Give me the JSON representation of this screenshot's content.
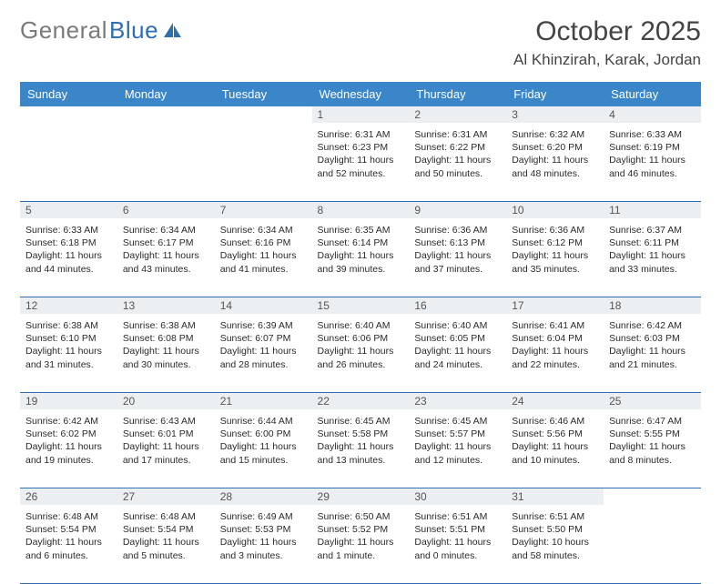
{
  "logo": {
    "text1": "General",
    "text2": "Blue"
  },
  "title": "October 2025",
  "location": "Al Khinzirah, Karak, Jordan",
  "header_bg": "#3a86c8",
  "rule_color": "#2f6fb0",
  "daynum_bg": "#eceff1",
  "text_color": "#2a2a2a",
  "days_of_week": [
    "Sunday",
    "Monday",
    "Tuesday",
    "Wednesday",
    "Thursday",
    "Friday",
    "Saturday"
  ],
  "weeks": [
    [
      {
        "day": "",
        "sunrise": "",
        "sunset": "",
        "daylight": ""
      },
      {
        "day": "",
        "sunrise": "",
        "sunset": "",
        "daylight": ""
      },
      {
        "day": "",
        "sunrise": "",
        "sunset": "",
        "daylight": ""
      },
      {
        "day": "1",
        "sunrise": "Sunrise: 6:31 AM",
        "sunset": "Sunset: 6:23 PM",
        "daylight": "Daylight: 11 hours and 52 minutes."
      },
      {
        "day": "2",
        "sunrise": "Sunrise: 6:31 AM",
        "sunset": "Sunset: 6:22 PM",
        "daylight": "Daylight: 11 hours and 50 minutes."
      },
      {
        "day": "3",
        "sunrise": "Sunrise: 6:32 AM",
        "sunset": "Sunset: 6:20 PM",
        "daylight": "Daylight: 11 hours and 48 minutes."
      },
      {
        "day": "4",
        "sunrise": "Sunrise: 6:33 AM",
        "sunset": "Sunset: 6:19 PM",
        "daylight": "Daylight: 11 hours and 46 minutes."
      }
    ],
    [
      {
        "day": "5",
        "sunrise": "Sunrise: 6:33 AM",
        "sunset": "Sunset: 6:18 PM",
        "daylight": "Daylight: 11 hours and 44 minutes."
      },
      {
        "day": "6",
        "sunrise": "Sunrise: 6:34 AM",
        "sunset": "Sunset: 6:17 PM",
        "daylight": "Daylight: 11 hours and 43 minutes."
      },
      {
        "day": "7",
        "sunrise": "Sunrise: 6:34 AM",
        "sunset": "Sunset: 6:16 PM",
        "daylight": "Daylight: 11 hours and 41 minutes."
      },
      {
        "day": "8",
        "sunrise": "Sunrise: 6:35 AM",
        "sunset": "Sunset: 6:14 PM",
        "daylight": "Daylight: 11 hours and 39 minutes."
      },
      {
        "day": "9",
        "sunrise": "Sunrise: 6:36 AM",
        "sunset": "Sunset: 6:13 PM",
        "daylight": "Daylight: 11 hours and 37 minutes."
      },
      {
        "day": "10",
        "sunrise": "Sunrise: 6:36 AM",
        "sunset": "Sunset: 6:12 PM",
        "daylight": "Daylight: 11 hours and 35 minutes."
      },
      {
        "day": "11",
        "sunrise": "Sunrise: 6:37 AM",
        "sunset": "Sunset: 6:11 PM",
        "daylight": "Daylight: 11 hours and 33 minutes."
      }
    ],
    [
      {
        "day": "12",
        "sunrise": "Sunrise: 6:38 AM",
        "sunset": "Sunset: 6:10 PM",
        "daylight": "Daylight: 11 hours and 31 minutes."
      },
      {
        "day": "13",
        "sunrise": "Sunrise: 6:38 AM",
        "sunset": "Sunset: 6:08 PM",
        "daylight": "Daylight: 11 hours and 30 minutes."
      },
      {
        "day": "14",
        "sunrise": "Sunrise: 6:39 AM",
        "sunset": "Sunset: 6:07 PM",
        "daylight": "Daylight: 11 hours and 28 minutes."
      },
      {
        "day": "15",
        "sunrise": "Sunrise: 6:40 AM",
        "sunset": "Sunset: 6:06 PM",
        "daylight": "Daylight: 11 hours and 26 minutes."
      },
      {
        "day": "16",
        "sunrise": "Sunrise: 6:40 AM",
        "sunset": "Sunset: 6:05 PM",
        "daylight": "Daylight: 11 hours and 24 minutes."
      },
      {
        "day": "17",
        "sunrise": "Sunrise: 6:41 AM",
        "sunset": "Sunset: 6:04 PM",
        "daylight": "Daylight: 11 hours and 22 minutes."
      },
      {
        "day": "18",
        "sunrise": "Sunrise: 6:42 AM",
        "sunset": "Sunset: 6:03 PM",
        "daylight": "Daylight: 11 hours and 21 minutes."
      }
    ],
    [
      {
        "day": "19",
        "sunrise": "Sunrise: 6:42 AM",
        "sunset": "Sunset: 6:02 PM",
        "daylight": "Daylight: 11 hours and 19 minutes."
      },
      {
        "day": "20",
        "sunrise": "Sunrise: 6:43 AM",
        "sunset": "Sunset: 6:01 PM",
        "daylight": "Daylight: 11 hours and 17 minutes."
      },
      {
        "day": "21",
        "sunrise": "Sunrise: 6:44 AM",
        "sunset": "Sunset: 6:00 PM",
        "daylight": "Daylight: 11 hours and 15 minutes."
      },
      {
        "day": "22",
        "sunrise": "Sunrise: 6:45 AM",
        "sunset": "Sunset: 5:58 PM",
        "daylight": "Daylight: 11 hours and 13 minutes."
      },
      {
        "day": "23",
        "sunrise": "Sunrise: 6:45 AM",
        "sunset": "Sunset: 5:57 PM",
        "daylight": "Daylight: 11 hours and 12 minutes."
      },
      {
        "day": "24",
        "sunrise": "Sunrise: 6:46 AM",
        "sunset": "Sunset: 5:56 PM",
        "daylight": "Daylight: 11 hours and 10 minutes."
      },
      {
        "day": "25",
        "sunrise": "Sunrise: 6:47 AM",
        "sunset": "Sunset: 5:55 PM",
        "daylight": "Daylight: 11 hours and 8 minutes."
      }
    ],
    [
      {
        "day": "26",
        "sunrise": "Sunrise: 6:48 AM",
        "sunset": "Sunset: 5:54 PM",
        "daylight": "Daylight: 11 hours and 6 minutes."
      },
      {
        "day": "27",
        "sunrise": "Sunrise: 6:48 AM",
        "sunset": "Sunset: 5:54 PM",
        "daylight": "Daylight: 11 hours and 5 minutes."
      },
      {
        "day": "28",
        "sunrise": "Sunrise: 6:49 AM",
        "sunset": "Sunset: 5:53 PM",
        "daylight": "Daylight: 11 hours and 3 minutes."
      },
      {
        "day": "29",
        "sunrise": "Sunrise: 6:50 AM",
        "sunset": "Sunset: 5:52 PM",
        "daylight": "Daylight: 11 hours and 1 minute."
      },
      {
        "day": "30",
        "sunrise": "Sunrise: 6:51 AM",
        "sunset": "Sunset: 5:51 PM",
        "daylight": "Daylight: 11 hours and 0 minutes."
      },
      {
        "day": "31",
        "sunrise": "Sunrise: 6:51 AM",
        "sunset": "Sunset: 5:50 PM",
        "daylight": "Daylight: 10 hours and 58 minutes."
      },
      {
        "day": "",
        "sunrise": "",
        "sunset": "",
        "daylight": ""
      }
    ]
  ]
}
